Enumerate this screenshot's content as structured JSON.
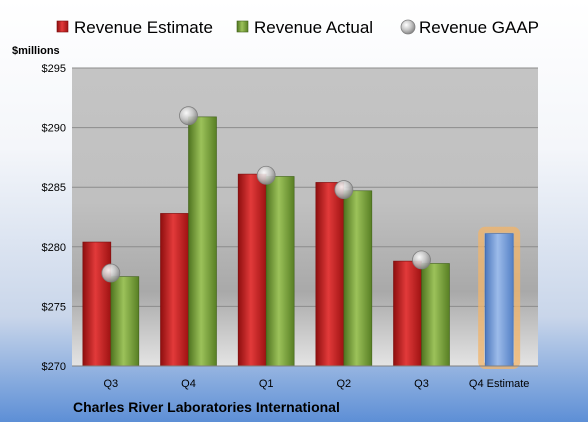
{
  "chart_data": {
    "type": "bar",
    "title": "Charles River Laboratories International",
    "ylabel": "$millions",
    "ylim": [
      270,
      295
    ],
    "yticks": [
      270,
      275,
      280,
      285,
      290,
      295
    ],
    "ytick_labels": [
      "$270",
      "$275",
      "$280",
      "$285",
      "$290",
      "$295"
    ],
    "categories": [
      "Q3",
      "Q4",
      "Q1",
      "Q2",
      "Q3",
      "Q4 Estimate"
    ],
    "legend_position": "top",
    "grid": true,
    "series": [
      {
        "name": "Revenue Estimate",
        "kind": "bar",
        "color": "#cc1f1f",
        "values": [
          280.4,
          282.8,
          286.1,
          285.4,
          278.8,
          null
        ]
      },
      {
        "name": "Revenue Actual",
        "kind": "bar",
        "color": "#6f9a2e",
        "values": [
          277.5,
          290.9,
          285.9,
          284.7,
          278.6,
          null
        ]
      },
      {
        "name": "Revenue GAAP",
        "kind": "marker",
        "color": "#bfbfbf",
        "values": [
          277.8,
          291.0,
          286.0,
          284.8,
          278.9,
          null
        ]
      },
      {
        "name": "",
        "kind": "bar",
        "color": "#6d98d6",
        "highlight": "#f2b46a",
        "values": [
          null,
          null,
          null,
          null,
          null,
          281.1
        ]
      }
    ]
  }
}
